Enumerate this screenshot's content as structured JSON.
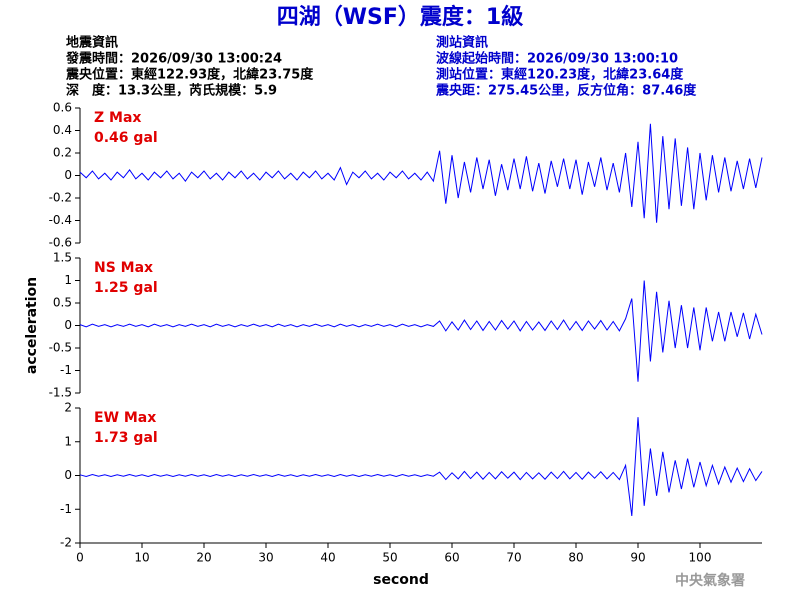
{
  "header": {
    "title": "四湖（WSF）震度：1級",
    "left": [
      "地震資訊",
      "發震時間：2026/09/30 13:00:24",
      "震央位置：東經122.93度，北緯23.75度",
      "深　度：13.3公里，芮氏規模：5.9"
    ],
    "right": [
      "測站資訊",
      "波線起始時間：2026/09/30 13:00:10",
      "測站位置：東經120.23度，北緯23.64度",
      "震央距：275.45公里，反方位角：87.46度"
    ]
  },
  "footer": "中央氣象署",
  "chart_data": [
    {
      "type": "line",
      "annotation": [
        "Z Max",
        "0.46 gal"
      ],
      "color": "#0000ff",
      "xlim": [
        0,
        110
      ],
      "ylim": [
        -0.6,
        0.6
      ],
      "yticks": [
        0.6,
        0.4,
        0.2,
        0,
        -0.2,
        -0.4,
        -0.6
      ],
      "x": [
        0,
        1,
        2,
        3,
        4,
        5,
        6,
        7,
        8,
        9,
        10,
        11,
        12,
        13,
        14,
        15,
        16,
        17,
        18,
        19,
        20,
        21,
        22,
        23,
        24,
        25,
        26,
        27,
        28,
        29,
        30,
        31,
        32,
        33,
        34,
        35,
        36,
        37,
        38,
        39,
        40,
        41,
        42,
        43,
        44,
        45,
        46,
        47,
        48,
        49,
        50,
        51,
        52,
        53,
        54,
        55,
        56,
        57,
        58,
        59,
        60,
        61,
        62,
        63,
        64,
        65,
        66,
        67,
        68,
        69,
        70,
        71,
        72,
        73,
        74,
        75,
        76,
        77,
        78,
        79,
        80,
        81,
        82,
        83,
        84,
        85,
        86,
        87,
        88,
        89,
        90,
        91,
        92,
        93,
        94,
        95,
        96,
        97,
        98,
        99,
        100,
        101,
        102,
        103,
        104,
        105,
        106,
        107,
        108,
        109,
        110
      ],
      "values": [
        0.03,
        -0.02,
        0.04,
        -0.03,
        0.02,
        -0.04,
        0.03,
        -0.02,
        0.05,
        -0.03,
        0.02,
        -0.04,
        0.03,
        -0.02,
        0.04,
        -0.03,
        0.02,
        -0.05,
        0.03,
        -0.02,
        0.04,
        -0.03,
        0.02,
        -0.04,
        0.03,
        -0.02,
        0.04,
        -0.03,
        0.02,
        -0.04,
        0.03,
        -0.02,
        0.04,
        -0.03,
        0.02,
        -0.04,
        0.03,
        -0.02,
        0.04,
        -0.03,
        0.02,
        -0.04,
        0.07,
        -0.08,
        0.03,
        -0.02,
        0.04,
        -0.03,
        0.02,
        -0.04,
        0.03,
        -0.02,
        0.04,
        -0.03,
        0.02,
        -0.04,
        0.03,
        -0.05,
        0.22,
        -0.25,
        0.18,
        -0.2,
        0.12,
        -0.15,
        0.16,
        -0.12,
        0.14,
        -0.18,
        0.1,
        -0.13,
        0.15,
        -0.12,
        0.17,
        -0.14,
        0.11,
        -0.16,
        0.13,
        -0.1,
        0.15,
        -0.12,
        0.14,
        -0.17,
        0.12,
        -0.1,
        0.16,
        -0.13,
        0.11,
        -0.15,
        0.2,
        -0.28,
        0.3,
        -0.38,
        0.46,
        -0.42,
        0.35,
        -0.3,
        0.33,
        -0.27,
        0.25,
        -0.3,
        0.2,
        -0.22,
        0.18,
        -0.15,
        0.16,
        -0.14,
        0.13,
        -0.12,
        0.15,
        -0.11,
        0.16
      ]
    },
    {
      "type": "line",
      "annotation": [
        "NS Max",
        "1.25 gal"
      ],
      "color": "#0000ff",
      "ylabel": "acceleration",
      "xlim": [
        0,
        110
      ],
      "ylim": [
        -1.5,
        1.5
      ],
      "yticks": [
        1.5,
        1,
        0.5,
        0,
        -0.5,
        -1,
        -1.5
      ],
      "x": [
        0,
        1,
        2,
        3,
        4,
        5,
        6,
        7,
        8,
        9,
        10,
        11,
        12,
        13,
        14,
        15,
        16,
        17,
        18,
        19,
        20,
        21,
        22,
        23,
        24,
        25,
        26,
        27,
        28,
        29,
        30,
        31,
        32,
        33,
        34,
        35,
        36,
        37,
        38,
        39,
        40,
        41,
        42,
        43,
        44,
        45,
        46,
        47,
        48,
        49,
        50,
        51,
        52,
        53,
        54,
        55,
        56,
        57,
        58,
        59,
        60,
        61,
        62,
        63,
        64,
        65,
        66,
        67,
        68,
        69,
        70,
        71,
        72,
        73,
        74,
        75,
        76,
        77,
        78,
        79,
        80,
        81,
        82,
        83,
        84,
        85,
        86,
        87,
        88,
        89,
        90,
        91,
        92,
        93,
        94,
        95,
        96,
        97,
        98,
        99,
        100,
        101,
        102,
        103,
        104,
        105,
        106,
        107,
        108,
        109,
        110
      ],
      "values": [
        0.02,
        -0.03,
        0.03,
        -0.02,
        0.02,
        -0.03,
        0.02,
        -0.02,
        0.03,
        -0.02,
        0.02,
        -0.03,
        0.03,
        -0.02,
        0.02,
        -0.03,
        0.02,
        -0.02,
        0.03,
        -0.02,
        0.02,
        -0.03,
        0.03,
        -0.02,
        0.02,
        -0.03,
        0.02,
        -0.02,
        0.03,
        -0.02,
        0.02,
        -0.03,
        0.03,
        -0.02,
        0.02,
        -0.03,
        0.02,
        -0.02,
        0.03,
        -0.02,
        0.02,
        -0.03,
        0.03,
        -0.02,
        0.02,
        -0.03,
        0.02,
        -0.02,
        0.03,
        -0.02,
        0.02,
        -0.03,
        0.03,
        -0.02,
        0.02,
        -0.03,
        0.02,
        -0.02,
        0.1,
        -0.12,
        0.08,
        -0.1,
        0.12,
        -0.09,
        0.1,
        -0.11,
        0.09,
        -0.1,
        0.11,
        -0.08,
        0.1,
        -0.12,
        0.09,
        -0.1,
        0.08,
        -0.11,
        0.1,
        -0.09,
        0.12,
        -0.1,
        0.09,
        -0.11,
        0.1,
        -0.08,
        0.11,
        -0.1,
        0.09,
        -0.12,
        0.15,
        0.6,
        -1.25,
        1.0,
        -0.8,
        0.75,
        -0.6,
        0.55,
        -0.5,
        0.45,
        -0.5,
        0.4,
        -0.55,
        0.4,
        -0.35,
        0.3,
        -0.35,
        0.3,
        -0.25,
        0.28,
        -0.3,
        0.25,
        -0.2
      ]
    },
    {
      "type": "line",
      "annotation": [
        "EW Max",
        "1.73 gal"
      ],
      "color": "#0000ff",
      "xlabel": "second",
      "xlim": [
        0,
        110
      ],
      "xticks": [
        0,
        10,
        20,
        30,
        40,
        50,
        60,
        70,
        80,
        90,
        100
      ],
      "ylim": [
        -2,
        2
      ],
      "yticks": [
        2,
        1,
        0,
        -1,
        -2
      ],
      "x": [
        0,
        1,
        2,
        3,
        4,
        5,
        6,
        7,
        8,
        9,
        10,
        11,
        12,
        13,
        14,
        15,
        16,
        17,
        18,
        19,
        20,
        21,
        22,
        23,
        24,
        25,
        26,
        27,
        28,
        29,
        30,
        31,
        32,
        33,
        34,
        35,
        36,
        37,
        38,
        39,
        40,
        41,
        42,
        43,
        44,
        45,
        46,
        47,
        48,
        49,
        50,
        51,
        52,
        53,
        54,
        55,
        56,
        57,
        58,
        59,
        60,
        61,
        62,
        63,
        64,
        65,
        66,
        67,
        68,
        69,
        70,
        71,
        72,
        73,
        74,
        75,
        76,
        77,
        78,
        79,
        80,
        81,
        82,
        83,
        84,
        85,
        86,
        87,
        88,
        89,
        90,
        91,
        92,
        93,
        94,
        95,
        96,
        97,
        98,
        99,
        100,
        101,
        102,
        103,
        104,
        105,
        106,
        107,
        108,
        109,
        110
      ],
      "values": [
        0.02,
        -0.03,
        0.03,
        -0.02,
        0.02,
        -0.03,
        0.02,
        -0.02,
        0.03,
        -0.02,
        0.02,
        -0.03,
        0.03,
        -0.02,
        0.02,
        -0.03,
        0.02,
        -0.02,
        0.03,
        -0.02,
        0.02,
        -0.03,
        0.03,
        -0.02,
        0.02,
        -0.03,
        0.02,
        -0.02,
        0.03,
        -0.02,
        0.02,
        -0.03,
        0.03,
        -0.02,
        0.02,
        -0.03,
        0.02,
        -0.02,
        0.03,
        -0.02,
        0.02,
        -0.03,
        0.03,
        -0.02,
        0.02,
        -0.03,
        0.02,
        -0.02,
        0.03,
        -0.02,
        0.02,
        -0.03,
        0.03,
        -0.02,
        0.02,
        -0.03,
        0.02,
        -0.02,
        0.1,
        -0.12,
        0.08,
        -0.1,
        0.12,
        -0.09,
        0.1,
        -0.11,
        0.09,
        -0.1,
        0.11,
        -0.08,
        0.1,
        -0.12,
        0.09,
        -0.1,
        0.08,
        -0.11,
        0.1,
        -0.09,
        0.12,
        -0.1,
        0.09,
        -0.11,
        0.1,
        -0.08,
        0.11,
        -0.1,
        0.09,
        -0.12,
        0.3,
        -1.2,
        1.73,
        -0.9,
        0.8,
        -0.6,
        0.7,
        -0.5,
        0.45,
        -0.4,
        0.5,
        -0.35,
        0.4,
        -0.3,
        0.3,
        -0.25,
        0.25,
        -0.2,
        0.22,
        -0.18,
        0.2,
        -0.15,
        0.12
      ]
    }
  ]
}
